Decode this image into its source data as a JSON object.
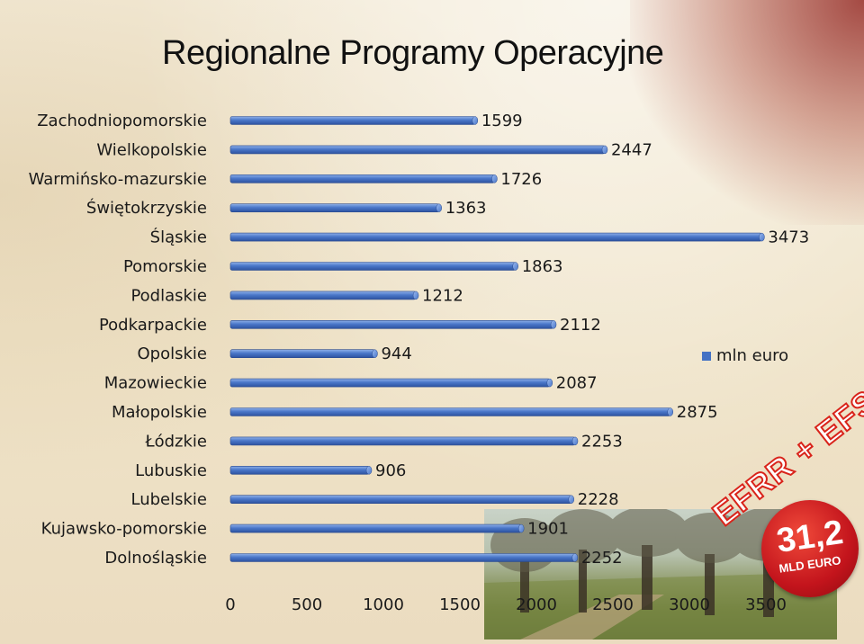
{
  "page": {
    "title": "Regionalne Programy Operacyjne"
  },
  "chart_data": {
    "type": "bar",
    "orientation": "horizontal",
    "categories": [
      "Zachodniopomorskie",
      "Wielkopolskie",
      "Warmińsko-mazurskie",
      "Świętokrzyskie",
      "Śląskie",
      "Pomorskie",
      "Podlaskie",
      "Podkarpackie",
      "Opolskie",
      "Mazowieckie",
      "Małopolskie",
      "Łódzkie",
      "Lubuskie",
      "Lubelskie",
      "Kujawsko-pomorskie",
      "Dolnośląskie"
    ],
    "series": [
      {
        "name": "mln euro",
        "values": [
          1599,
          2447,
          1726,
          1363,
          3473,
          1863,
          1212,
          2112,
          944,
          2087,
          2875,
          2253,
          906,
          2228,
          1901,
          2252
        ]
      }
    ],
    "value_labels": [
      "1599",
      "2447",
      "1726",
      "1363",
      "3473",
      "1863",
      "1212",
      "2112",
      "944",
      "2087",
      "2875",
      "2253",
      "906",
      "2228",
      "1901",
      "2252"
    ],
    "xlim": [
      0,
      3500
    ],
    "xticks": [
      "0",
      "500",
      "1000",
      "1500",
      "2000",
      "2500",
      "3000",
      "3500"
    ],
    "bar_color": "#4472c4",
    "legend_position": "right"
  },
  "decorations": {
    "badge_number": "31,2",
    "badge_unit": "MLD EURO",
    "banner_text": "EFRR + EFS",
    "badge_color": "#d9241b"
  }
}
